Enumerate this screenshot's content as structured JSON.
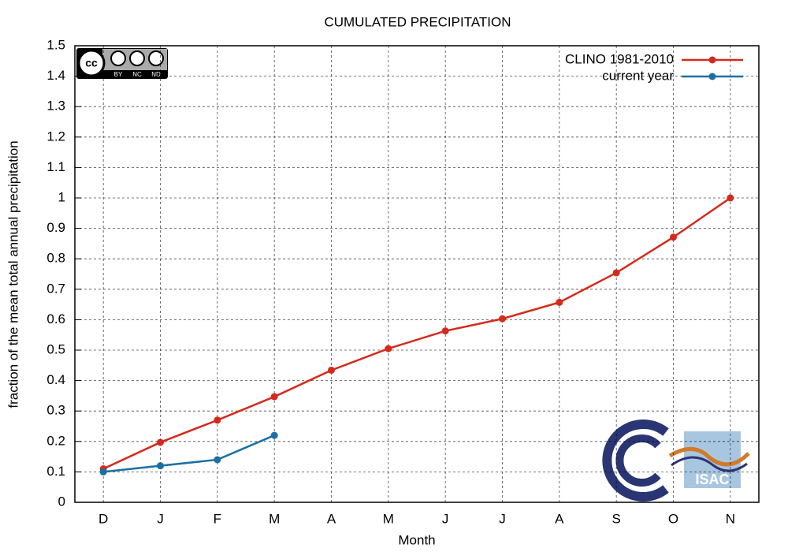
{
  "chart_data": {
    "type": "line",
    "title": "CUMULATED PRECIPITATION",
    "x_label": "Month",
    "y_label": "fraction of the mean total annual precipitation",
    "categories": [
      "D",
      "J",
      "F",
      "M",
      "A",
      "M",
      "J",
      "J",
      "A",
      "S",
      "O",
      "N"
    ],
    "series": [
      {
        "name": "CLINO 1981-2010",
        "color": "#d42a1c",
        "values": [
          0.11,
          0.197,
          0.27,
          0.347,
          0.434,
          0.505,
          0.563,
          0.603,
          0.657,
          0.754,
          0.871,
          1.0
        ]
      },
      {
        "name": "current year",
        "color": "#1a6fa3",
        "values": [
          0.1,
          0.12,
          0.14,
          0.22,
          null,
          null,
          null,
          null,
          null,
          null,
          null,
          null
        ]
      }
    ],
    "ylim": [
      0,
      1.5
    ],
    "yticks": [
      0,
      0.1,
      0.2,
      0.3,
      0.4,
      0.5,
      0.6,
      0.7,
      0.8,
      0.9,
      1,
      1.1,
      1.2,
      1.3,
      1.4,
      1.5
    ],
    "grid": true,
    "legend": "top-right",
    "badge_labels": [
      "cc",
      "BY",
      "NC",
      "ND"
    ],
    "logo_label": "ISAC"
  }
}
